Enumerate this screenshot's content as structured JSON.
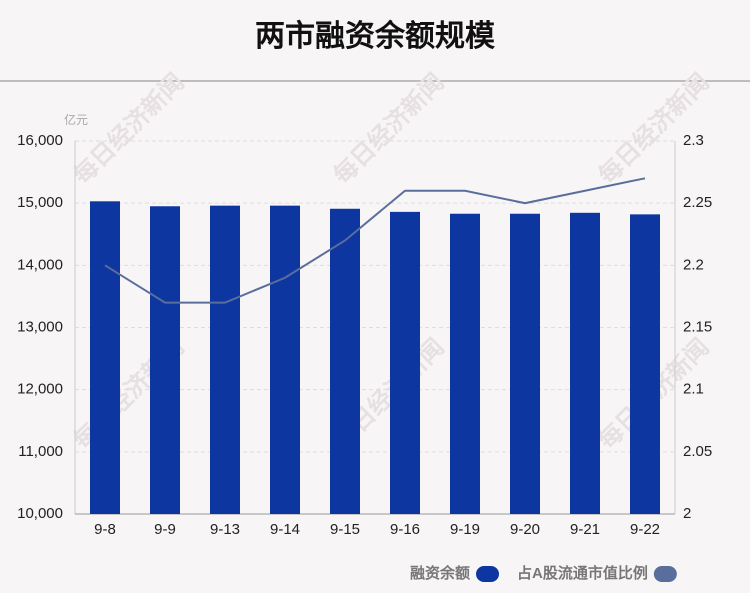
{
  "chart_data": {
    "type": "bar-line",
    "title": "两市融资余额规模",
    "y_unit": "亿元",
    "watermark": "每日经济新闻",
    "categories": [
      "9-8",
      "9-9",
      "9-13",
      "9-14",
      "9-15",
      "9-16",
      "9-19",
      "9-20",
      "9-21",
      "9-22"
    ],
    "series": [
      {
        "name": "融资余额",
        "type": "bar",
        "color": "#0d36a0",
        "values": [
          15030,
          14950,
          14960,
          14960,
          14910,
          14860,
          14830,
          14830,
          14845,
          14820
        ]
      },
      {
        "name": "占A股流通市值比例",
        "type": "line",
        "axis": "y2",
        "color": "#5a6e9c",
        "values": [
          2.2,
          2.17,
          2.17,
          2.19,
          2.22,
          2.26,
          2.26,
          2.25,
          2.26,
          2.27
        ]
      }
    ],
    "ylim": [
      10000,
      16000
    ],
    "yticks": [
      {
        "value": 10000,
        "label": "10,000"
      },
      {
        "value": 11000,
        "label": "11,000"
      },
      {
        "value": 12000,
        "label": "12,000"
      },
      {
        "value": 13000,
        "label": "13,000"
      },
      {
        "value": 14000,
        "label": "14,000"
      },
      {
        "value": 15000,
        "label": "15,000"
      },
      {
        "value": 16000,
        "label": "16,000"
      }
    ],
    "y2lim": [
      2,
      2.3
    ],
    "y2ticks": [
      2,
      2.05,
      2.1,
      2.15,
      2.2,
      2.25,
      2.3
    ],
    "grid": true
  }
}
